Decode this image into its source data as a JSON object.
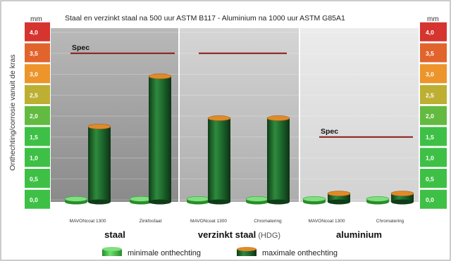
{
  "chart_data": {
    "type": "bar",
    "title": "Staal en verzinkt staal na 500 uur ASTM B117   -   Aluminium na 1000 uur ASTM G85A1",
    "ylabel": "Onthechting/corrosie vanuit de kras",
    "unit": "mm",
    "ylim": [
      0,
      4.0
    ],
    "yticks": [
      "0,0",
      "0,5",
      "1,0",
      "1,5",
      "2,0",
      "2,5",
      "3,0",
      "3,5",
      "4,0"
    ],
    "groups": [
      {
        "name": "staal",
        "name_suffix": "",
        "spec_label": "Spec",
        "spec": 3.5,
        "categories": [
          {
            "label": "MAVONcoat 1300",
            "min": 0.0,
            "max": 1.75
          },
          {
            "label": "Zinkfosfaat",
            "min": 0.0,
            "max": 2.95
          }
        ]
      },
      {
        "name": "verzinkt staal",
        "name_suffix": "(HDG)",
        "spec_label": "",
        "spec": 3.5,
        "categories": [
          {
            "label": "MAVONcoat 1300",
            "min": 0.0,
            "max": 1.95
          },
          {
            "label": "Chromatering",
            "min": 0.0,
            "max": 1.95
          }
        ]
      },
      {
        "name": "aluminium",
        "name_suffix": "",
        "spec_label": "Spec",
        "spec": 1.5,
        "categories": [
          {
            "label": "MAVONcoat 1300",
            "min": 0.0,
            "max": 0.15
          },
          {
            "label": "Chromatering",
            "min": 0.0,
            "max": 0.15
          }
        ]
      }
    ],
    "legend": [
      {
        "name": "minimale onthechting",
        "key": "min"
      },
      {
        "name": "maximale onthechting",
        "key": "max"
      }
    ],
    "colors": {
      "green_dark": "#1f6b2f",
      "green_light": "#3fbf3f",
      "orange_top": "#e08a2a",
      "spec_line": "#8b1a1a",
      "scale_bottom": "#3ec046",
      "scale_mid": "#f2a72a",
      "scale_top": "#d6342f"
    }
  }
}
